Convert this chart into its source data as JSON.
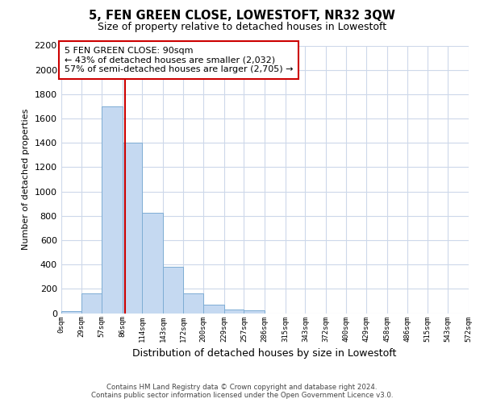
{
  "title": "5, FEN GREEN CLOSE, LOWESTOFT, NR32 3QW",
  "subtitle": "Size of property relative to detached houses in Lowestoft",
  "xlabel": "Distribution of detached houses by size in Lowestoft",
  "ylabel": "Number of detached properties",
  "bin_labels": [
    "0sqm",
    "29sqm",
    "57sqm",
    "86sqm",
    "114sqm",
    "143sqm",
    "172sqm",
    "200sqm",
    "229sqm",
    "257sqm",
    "286sqm",
    "315sqm",
    "343sqm",
    "372sqm",
    "400sqm",
    "429sqm",
    "458sqm",
    "486sqm",
    "515sqm",
    "543sqm",
    "572sqm"
  ],
  "bar_values": [
    20,
    160,
    1700,
    1400,
    825,
    385,
    165,
    70,
    30,
    25,
    0,
    0,
    0,
    0,
    0,
    0,
    0,
    0,
    0,
    0
  ],
  "bin_edges": [
    0,
    29,
    57,
    86,
    114,
    143,
    172,
    200,
    229,
    257,
    286,
    315,
    343,
    372,
    400,
    429,
    458,
    486,
    515,
    543,
    572
  ],
  "bar_color": "#c5d9f1",
  "bar_edge_color": "#7eadd4",
  "property_size": 90,
  "property_line_color": "#cc0000",
  "annotation_text1": "5 FEN GREEN CLOSE: 90sqm",
  "annotation_text2": "← 43% of detached houses are smaller (2,032)",
  "annotation_text3": "57% of semi-detached houses are larger (2,705) →",
  "annotation_box_color": "#ffffff",
  "annotation_box_edge": "#cc0000",
  "ylim": [
    0,
    2200
  ],
  "yticks": [
    0,
    200,
    400,
    600,
    800,
    1000,
    1200,
    1400,
    1600,
    1800,
    2000,
    2200
  ],
  "footer_line1": "Contains HM Land Registry data © Crown copyright and database right 2024.",
  "footer_line2": "Contains public sector information licensed under the Open Government Licence v3.0.",
  "background_color": "#ffffff",
  "grid_color": "#cdd8ea"
}
